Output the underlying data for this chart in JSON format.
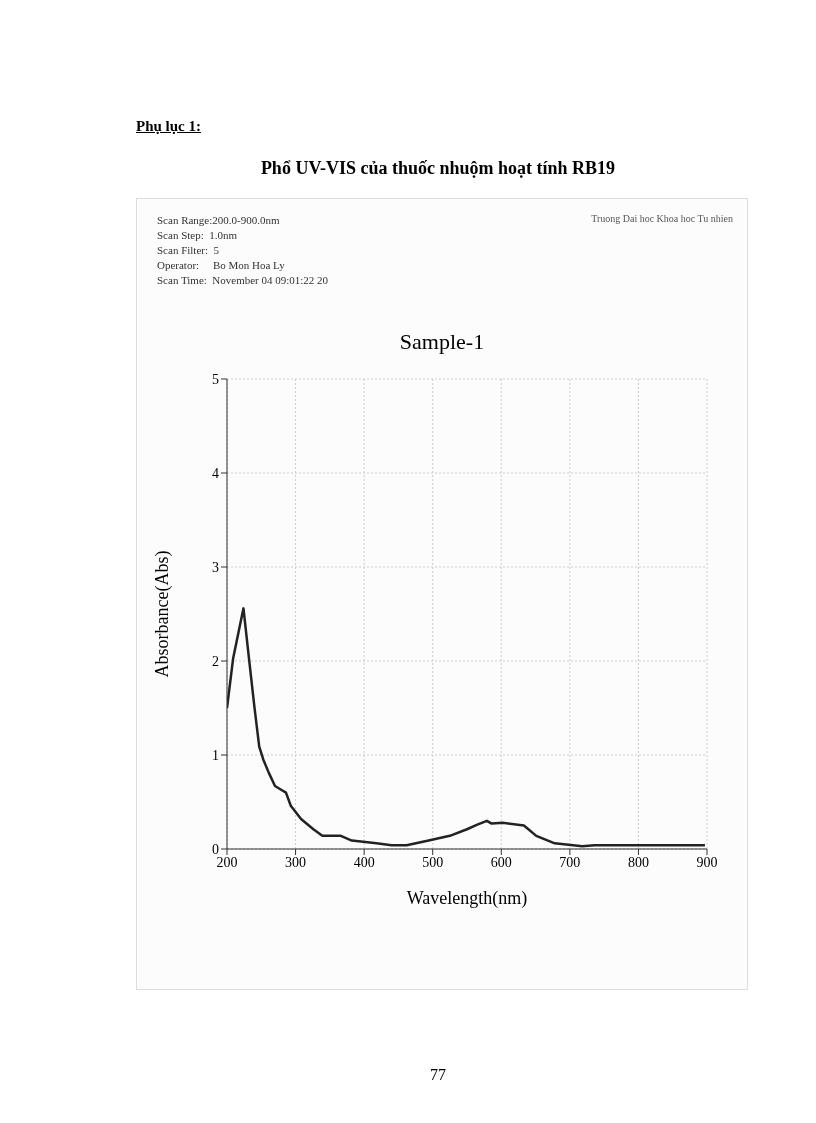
{
  "chart_data": {
    "type": "line",
    "title": "Phổ UV-VIS  của thuốc nhuộm hoạt tính RB19",
    "subtitle": "Sample-1",
    "xlabel": "Wavelength(nm)",
    "ylabel": "Absorbance(Abs)",
    "annotations": [
      "Phụ lục 1:",
      "Scan Range:200.0-900.0nm",
      "Scan Step:  1.0nm",
      "Scan Filter:  5",
      "Operator:     Bo Mon Hoa Ly",
      "Scan Time:  November 04 09:01:22 20",
      "Truong Dai hoc Khoa hoc Tu nhien",
      "77"
    ],
    "x": [
      200,
      209,
      224,
      232,
      240,
      247,
      253,
      261,
      270,
      279,
      286,
      293,
      308,
      326,
      339,
      366,
      382,
      418,
      440,
      462,
      494,
      525,
      550,
      565,
      579,
      586,
      602,
      633,
      651,
      678,
      718,
      736,
      839,
      897
    ],
    "series": [
      {
        "color": "#222222",
        "values": [
          1.5,
          2.03,
          2.56,
          2.03,
          1.51,
          1.09,
          0.95,
          0.81,
          0.67,
          0.63,
          0.6,
          0.46,
          0.32,
          0.21,
          0.14,
          0.14,
          0.09,
          0.06,
          0.04,
          0.04,
          0.09,
          0.14,
          0.21,
          0.26,
          0.3,
          0.27,
          0.28,
          0.25,
          0.14,
          0.06,
          0.03,
          0.04,
          0.04,
          0.04
        ]
      }
    ],
    "xlim": [
      200,
      900
    ],
    "xticks": [
      200,
      300,
      400,
      500,
      600,
      700,
      800,
      900
    ],
    "ylim": [
      0,
      5
    ],
    "yticks": [
      0,
      1,
      2,
      3,
      4,
      5
    ],
    "grid": true,
    "legend": false,
    "marker": "none",
    "line_style": "solid"
  }
}
